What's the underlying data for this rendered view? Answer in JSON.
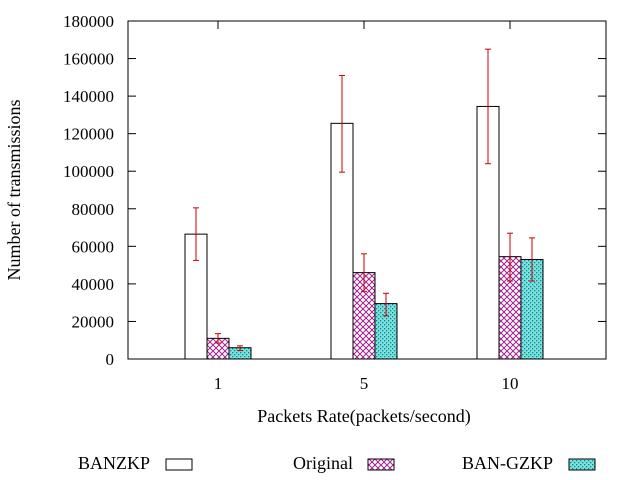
{
  "chart_data": {
    "type": "bar",
    "xlabel": "Packets Rate(packets/second)",
    "ylabel": "Number of transmissions",
    "categories": [
      "1",
      "5",
      "10"
    ],
    "ylim": [
      0,
      180000
    ],
    "yticks": [
      0,
      20000,
      40000,
      60000,
      80000,
      100000,
      120000,
      140000,
      160000,
      180000
    ],
    "grid": false,
    "legend_position": "bottom",
    "error_bar_color": "#cc0000",
    "series": [
      {
        "name": "BANZKP",
        "pattern": "none",
        "color": "#000000",
        "values": [
          66500,
          125500,
          134500
        ],
        "err_low": [
          52500,
          99500,
          104000
        ],
        "err_high": [
          80500,
          151000,
          165000
        ]
      },
      {
        "name": "Original",
        "pattern": "crosshatch",
        "color": "#a0208f",
        "values": [
          11000,
          46000,
          54500
        ],
        "err_low": [
          8500,
          36000,
          41500
        ],
        "err_high": [
          13500,
          56000,
          67000
        ]
      },
      {
        "name": "BAN-GZKP",
        "pattern": "dots",
        "color": "#008b8b",
        "values": [
          6000,
          29500,
          53000
        ],
        "err_low": [
          4500,
          23000,
          41500
        ],
        "err_high": [
          7000,
          35000,
          64500
        ]
      }
    ]
  }
}
